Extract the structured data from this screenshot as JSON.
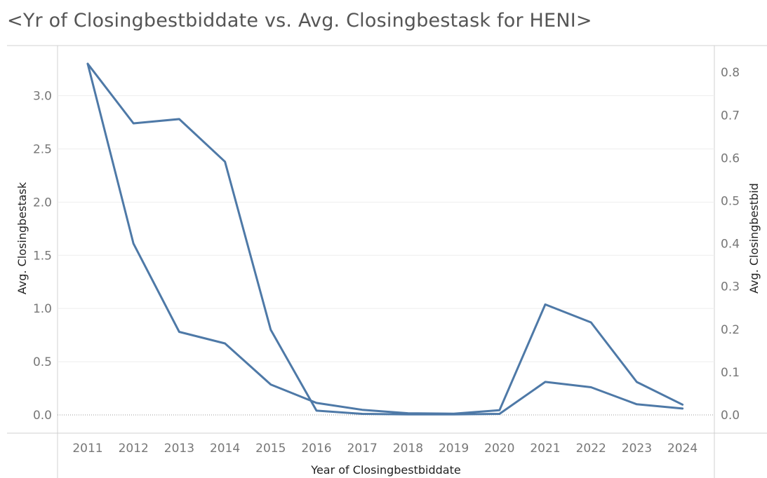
{
  "title": "<Yr of Closingbestbiddate vs. Avg. Closingbestask for HENI>",
  "chart_data": {
    "type": "line",
    "title": "<Yr of Closingbestbiddate vs. Avg. Closingbestask for HENI>",
    "xlabel": "Year of Closingbestbiddate",
    "ylabel": "Avg. Closingbestask",
    "y2label": "Avg. Closingbestbid",
    "categories": [
      "2011",
      "2012",
      "2013",
      "2014",
      "2015",
      "2016",
      "2017",
      "2018",
      "2019",
      "2020",
      "2021",
      "2022",
      "2023",
      "2024"
    ],
    "ylim": [
      0,
      3.3
    ],
    "y2lim": [
      0,
      0.82
    ],
    "yticks": [
      "0.0",
      "0.5",
      "1.0",
      "1.5",
      "2.0",
      "2.5",
      "3.0"
    ],
    "y2ticks": [
      "0.0",
      "0.1",
      "0.2",
      "0.3",
      "0.4",
      "0.5",
      "0.6",
      "0.7",
      "0.8"
    ],
    "series": [
      {
        "axis": "left",
        "color": "#4e79a7",
        "values": [
          3.3,
          2.74,
          2.78,
          2.38,
          0.8,
          0.04,
          0.01,
          0.005,
          0.005,
          0.01,
          0.31,
          0.26,
          0.1,
          0.06
        ]
      },
      {
        "axis": "right",
        "color": "#4e79a7",
        "values": [
          0.82,
          0.4,
          0.194,
          0.167,
          0.071,
          0.028,
          0.012,
          0.004,
          0.003,
          0.011,
          0.258,
          0.216,
          0.077,
          0.024
        ]
      }
    ],
    "grid": true,
    "legend": "none"
  }
}
